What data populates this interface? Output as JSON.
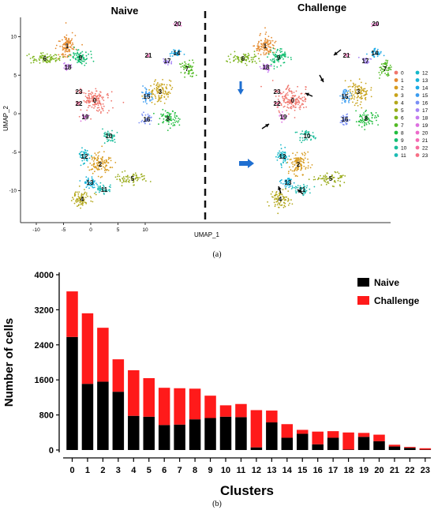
{
  "panel_a": {
    "caption": "(a)",
    "left_title": "Naive",
    "right_title": "Challenge",
    "xlabel": "UMAP_1",
    "ylabel": "UMAP_2",
    "x_ticks": [
      "-10",
      "-5",
      "0",
      "5",
      "10"
    ],
    "y_ticks": [
      "10",
      "5",
      "0",
      "-5",
      "-10"
    ],
    "legend_clusters": [
      "0",
      "1",
      "2",
      "3",
      "4",
      "5",
      "6",
      "7",
      "8",
      "9",
      "10",
      "11",
      "12",
      "13",
      "14",
      "15",
      "16",
      "17",
      "18",
      "19",
      "20",
      "21",
      "22",
      "23"
    ],
    "cluster_colors": [
      "#f0766d",
      "#e58a2e",
      "#d89b1f",
      "#c8a31a",
      "#b3a71a",
      "#9aab1a",
      "#7cb41c",
      "#52ba24",
      "#21bd3e",
      "#14bf72",
      "#1abd9a",
      "#1cbbb4",
      "#14b8c9",
      "#15b2d9",
      "#1aa9e6",
      "#3b9cf0",
      "#7a8ff5",
      "#a583f5",
      "#c57aef",
      "#dd70e0",
      "#ed6acb",
      "#f569b5",
      "#f76b9c",
      "#f76f85"
    ]
  },
  "panel_b": {
    "caption": "(b)"
  },
  "chart_data": {
    "type": "bar",
    "stacked": true,
    "title": "",
    "xlabel": "Clusters",
    "ylabel": "Number of cells",
    "ylim": [
      0,
      4000
    ],
    "yticks": [
      "0",
      "800",
      "1600",
      "2400",
      "3200",
      "4000"
    ],
    "categories": [
      "0",
      "1",
      "2",
      "3",
      "4",
      "5",
      "6",
      "7",
      "8",
      "9",
      "10",
      "11",
      "12",
      "13",
      "14",
      "15",
      "16",
      "17",
      "18",
      "19",
      "20",
      "21",
      "22",
      "23"
    ],
    "series": [
      {
        "name": "Naive",
        "color": "#000000",
        "values": [
          2580,
          1510,
          1560,
          1330,
          780,
          760,
          570,
          580,
          700,
          730,
          760,
          750,
          60,
          630,
          280,
          370,
          130,
          280,
          10,
          300,
          200,
          80,
          50,
          10
        ]
      },
      {
        "name": "Challenge",
        "color": "#ff1a1a",
        "values": [
          1040,
          1610,
          1230,
          740,
          1040,
          880,
          850,
          830,
          700,
          510,
          260,
          300,
          850,
          270,
          310,
          90,
          290,
          150,
          390,
          90,
          150,
          40,
          20,
          30
        ]
      }
    ],
    "legend_position": "top-right"
  }
}
